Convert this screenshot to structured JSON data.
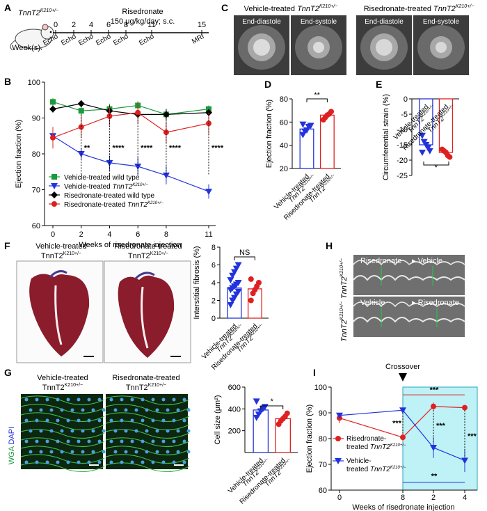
{
  "colors": {
    "green": "#1a9a3a",
    "blue": "#2233dd",
    "black": "#000000",
    "red": "#e02020",
    "cyan": "#bff2f6"
  },
  "panels": {
    "A": {
      "letter": "A",
      "mouse_label": "TnnT2",
      "mouse_sup": "K210+/−",
      "treatment": "Risedronate",
      "dose": "150 μg/kg/day; s.c.",
      "week_label": "Week(s)",
      "ticks": [
        "0",
        "2",
        "4",
        "6",
        "8",
        "11",
        "15"
      ],
      "events": [
        "Echo",
        "Echo",
        "Echo",
        "Echo",
        "Echo",
        "Echo",
        "MRI"
      ]
    },
    "B": {
      "letter": "B"
    },
    "C": {
      "letter": "C",
      "title_left_prefix": "Vehicle-treated ",
      "title_left_gene": "TnnT2",
      "title_right_prefix": "Risedronate-treated ",
      "title_right_gene": "TnnT2",
      "sup": "K210+/−",
      "frame_labels": [
        "End-diastole",
        "End-systole",
        "End-diastole",
        "End-systole"
      ]
    },
    "D": {
      "letter": "D"
    },
    "E": {
      "letter": "E"
    },
    "F": {
      "letter": "F",
      "title_left": "Vehicle-treated",
      "title_right": "Risedronate-treated",
      "gene": "TnnT2",
      "sup": "K210+/−"
    },
    "G": {
      "letter": "G",
      "title_left": "Vehicle-treated",
      "title_right": "Risedronate-treated",
      "gene": "TnnT2",
      "sup": "K210+/−",
      "stain_wga": "WGA",
      "stain_dapi": "DAPI"
    },
    "H": {
      "letter": "H",
      "row_labels": [
        "TnnT2",
        "TnnT2"
      ],
      "sup": "K210+/−",
      "top": [
        "Risedronate",
        "Vehicle"
      ],
      "bottom": [
        "Vehicle",
        "Risedronate"
      ]
    },
    "I": {
      "letter": "I",
      "crossover": "Crossover"
    }
  },
  "chart_data": [
    {
      "panel": "B",
      "type": "line",
      "x": [
        0,
        2,
        4,
        6,
        8,
        11
      ],
      "xlabel": "Weeks of risedronate injection",
      "ylabel": "Ejection fraction (%)",
      "ylim": [
        60,
        100
      ],
      "yticks": [
        60,
        70,
        80,
        90,
        100
      ],
      "series": [
        {
          "name": "Vehicle-treated wild type",
          "color": "#1a9a3a",
          "marker": "square",
          "values": [
            94.5,
            92,
            92.5,
            93.5,
            91,
            92.5
          ],
          "err": [
            1,
            1.5,
            1.5,
            1.2,
            1.5,
            1
          ]
        },
        {
          "name": "Vehicle-treated TnnT2K210+/−",
          "color": "#2233dd",
          "marker": "triangle",
          "values": [
            85,
            80,
            77.5,
            76.5,
            74,
            69.5
          ],
          "err": [
            2,
            1.5,
            2,
            2.5,
            2.5,
            2
          ]
        },
        {
          "name": "Risedronate-treated wild type",
          "color": "#000000",
          "marker": "diamond",
          "values": [
            92.5,
            94,
            92,
            91,
            91,
            91.5
          ],
          "err": [
            1,
            1,
            1.5,
            1,
            1.5,
            1
          ]
        },
        {
          "name": "Risedronate-treated TnnT2K210+/−",
          "color": "#e02020",
          "marker": "circle",
          "values": [
            84.5,
            87.5,
            90.5,
            91.5,
            86,
            88.5
          ],
          "err": [
            3,
            3,
            2.5,
            3,
            3,
            3
          ]
        }
      ],
      "legend": [
        {
          "prefix": "Vehicle-treated wild type",
          "gene": "",
          "sup": ""
        },
        {
          "prefix": "Vehicle-treated ",
          "gene": "TnnT2",
          "sup": "K210+/−"
        },
        {
          "prefix": "Risedronate-treated wild type",
          "gene": "",
          "sup": ""
        },
        {
          "prefix": "Risedronate-treated  ",
          "gene": "TnnT2",
          "sup": "K210+/−"
        }
      ],
      "annotations": [
        {
          "x": 2,
          "text": "**"
        },
        {
          "x": 4,
          "text": "****"
        },
        {
          "x": 6,
          "text": "****"
        },
        {
          "x": 8,
          "text": "****"
        },
        {
          "x": 11,
          "text": "****"
        }
      ]
    },
    {
      "panel": "D",
      "type": "bar",
      "ylabel": "Ejection fraction (%)",
      "ylim": [
        20,
        80
      ],
      "yticks": [
        20,
        40,
        60,
        80
      ],
      "categories": [
        "Vehicle-treated",
        "Risedronate-treated"
      ],
      "gene": "TnnT2",
      "sup": "K210+/−",
      "values": [
        54,
        66
      ],
      "points": [
        [
          49,
          52,
          53,
          56,
          57,
          58
        ],
        [
          62,
          64,
          66,
          67,
          69
        ]
      ],
      "colors": [
        "#2233dd",
        "#e02020"
      ],
      "sig": "**"
    },
    {
      "panel": "E",
      "type": "bar",
      "ylabel": "Circumferential strain (%)",
      "ylim": [
        -25,
        0
      ],
      "yticks": [
        0,
        -5,
        -10,
        -15,
        -20,
        -25
      ],
      "categories": [
        "Vehicle-treated",
        "Risedronate-treated"
      ],
      "gene": "TnnT2",
      "sup": "K210+/−",
      "values": [
        -15,
        -17.5
      ],
      "points": [
        [
          -12,
          -14,
          -15,
          -16,
          -17,
          -17.5
        ],
        [
          -16.5,
          -17,
          -17.5,
          -18.5,
          -19
        ]
      ],
      "colors": [
        "#2233dd",
        "#e02020"
      ],
      "sig": "*"
    },
    {
      "panel": "F",
      "type": "bar",
      "ylabel": "Interstitial fibrosis (%)",
      "ylim": [
        0,
        8
      ],
      "yticks": [
        0,
        2,
        4,
        6,
        8
      ],
      "categories": [
        "Vehicle-treated",
        "Risedronate-treated"
      ],
      "gene": "TnnT2",
      "sup": "K210+/−",
      "values": [
        3.4,
        3.3
      ],
      "points": [
        [
          1.5,
          2,
          2.3,
          2.7,
          3,
          3.2,
          3.4,
          3.6,
          3.8,
          4,
          4.3,
          4.8,
          5.2,
          5.6,
          6
        ],
        [
          2,
          2.8,
          3.2,
          3.6,
          4,
          4.4
        ]
      ],
      "colors": [
        "#2233dd",
        "#e02020"
      ],
      "sig": "NS"
    },
    {
      "panel": "G",
      "type": "bar",
      "ylabel": "Cell size (μm²)",
      "ylim": [
        0,
        600
      ],
      "yticks": [
        200,
        400,
        600
      ],
      "categories": [
        "Vehicle-treated",
        "Risedronate-treated"
      ],
      "gene": "TnnT2",
      "sup": "K210+/−",
      "values": [
        390,
        310
      ],
      "points": [
        [
          320,
          350,
          380,
          400,
          420,
          470
        ],
        [
          260,
          290,
          310,
          330,
          360
        ]
      ],
      "colors": [
        "#2233dd",
        "#e02020"
      ],
      "sig": "*"
    },
    {
      "panel": "I",
      "type": "line",
      "x_ticks": [
        "0",
        "8",
        "2",
        "4"
      ],
      "xlabel": "Weeks of risedronate injection",
      "ylabel": "Ejection fraction (%)",
      "ylim": [
        60,
        100
      ],
      "yticks": [
        60,
        70,
        80,
        90,
        100
      ],
      "series": [
        {
          "name": "Risedronate-treated TnnT2K210+/−",
          "color": "#e02020",
          "marker": "circle",
          "values": [
            88,
            80.5,
            92.5,
            92
          ],
          "err": [
            2,
            1.5,
            1.5,
            1
          ]
        },
        {
          "name": "Vehicle-treated TnnT2K210+/−",
          "color": "#2233dd",
          "marker": "triangle",
          "values": [
            89,
            91,
            76.5,
            71.5
          ],
          "err": [
            1,
            1,
            4,
            4.5
          ]
        }
      ],
      "legend": [
        {
          "line1": "Risedronate-",
          "line2": "treated ",
          "gene": "TnnT2",
          "sup": "K210+/−"
        },
        {
          "line1": "Vehicle-",
          "line2": "treated ",
          "gene": "TnnT2",
          "sup": "K210+/−"
        }
      ],
      "sig": [
        "***",
        "***",
        "***",
        "***",
        "**"
      ]
    }
  ]
}
